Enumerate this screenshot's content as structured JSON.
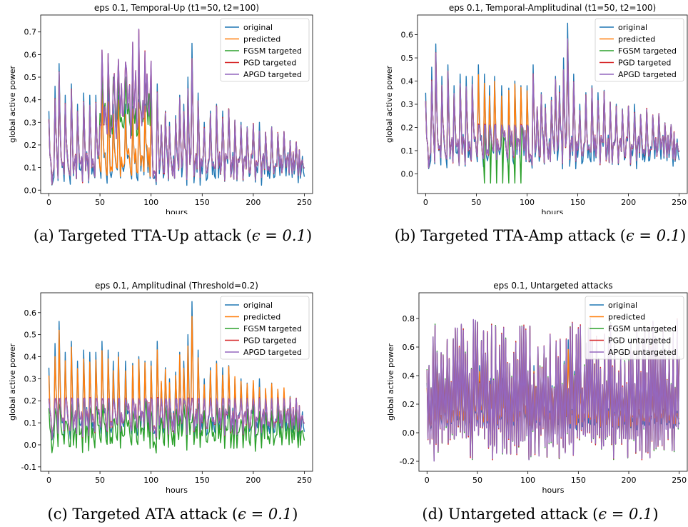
{
  "chart_data": [
    {
      "type": "line",
      "title": "eps 0.1, Temporal-Up (t1=50, t2=100)",
      "xlabel": "hours",
      "ylabel": "global active power",
      "xlim": [
        -8,
        258
      ],
      "ylim": [
        -0.015,
        0.775
      ],
      "xticks": [
        0,
        50,
        100,
        150,
        200,
        250
      ],
      "yticks": [
        0.0,
        0.1,
        0.2,
        0.3,
        0.4,
        0.5,
        0.6,
        0.7
      ],
      "grid": false,
      "legend_position": "top-right",
      "series": [
        {
          "name": "original",
          "color": "#1f77b4"
        },
        {
          "name": "predicted",
          "color": "#ff7f0e"
        },
        {
          "name": "FGSM targeted",
          "color": "#2ca02c"
        },
        {
          "name": "PGD targeted",
          "color": "#d62728"
        },
        {
          "name": "APGD targeted",
          "color": "#9467bd"
        }
      ]
    },
    {
      "type": "line",
      "title": "eps 0.1, Temporal-Amplitudinal (t1=50, t2=100)",
      "xlabel": "hours",
      "ylabel": "global active power",
      "xlim": [
        -8,
        258
      ],
      "ylim": [
        -0.085,
        0.685
      ],
      "xticks": [
        0,
        50,
        100,
        150,
        200,
        250
      ],
      "yticks": [
        0.0,
        0.1,
        0.2,
        0.3,
        0.4,
        0.5,
        0.6
      ],
      "grid": false,
      "legend_position": "top-right",
      "series": [
        {
          "name": "original",
          "color": "#1f77b4"
        },
        {
          "name": "predicted",
          "color": "#ff7f0e"
        },
        {
          "name": "FGSM targeted",
          "color": "#2ca02c"
        },
        {
          "name": "PGD targeted",
          "color": "#d62728"
        },
        {
          "name": "APGD targeted",
          "color": "#9467bd"
        }
      ]
    },
    {
      "type": "line",
      "title": "eps 0.1, Amplitudinal (Threshold=0.2)",
      "xlabel": "hours",
      "ylabel": "global active power",
      "xlim": [
        -8,
        258
      ],
      "ylim": [
        -0.12,
        0.69
      ],
      "xticks": [
        0,
        50,
        100,
        150,
        200,
        250
      ],
      "yticks": [
        -0.1,
        0.0,
        0.1,
        0.2,
        0.3,
        0.4,
        0.5,
        0.6
      ],
      "grid": false,
      "legend_position": "top-right",
      "series": [
        {
          "name": "original",
          "color": "#1f77b4"
        },
        {
          "name": "predicted",
          "color": "#ff7f0e"
        },
        {
          "name": "FGSM targeted",
          "color": "#2ca02c"
        },
        {
          "name": "PGD targeted",
          "color": "#d62728"
        },
        {
          "name": "APGD targeted",
          "color": "#9467bd"
        }
      ]
    },
    {
      "type": "line",
      "title": "eps 0.1, Untargeted attacks",
      "xlabel": "hours",
      "ylabel": "global active power",
      "xlim": [
        -8,
        258
      ],
      "ylim": [
        -0.27,
        0.98
      ],
      "xticks": [
        0,
        50,
        100,
        150,
        200,
        250
      ],
      "yticks": [
        -0.2,
        0.0,
        0.2,
        0.4,
        0.6,
        0.8
      ],
      "grid": false,
      "legend_position": "top-right",
      "series": [
        {
          "name": "original",
          "color": "#1f77b4"
        },
        {
          "name": "predicted",
          "color": "#ff7f0e"
        },
        {
          "name": "FGSM untargeted",
          "color": "#2ca02c"
        },
        {
          "name": "PGD untargeted",
          "color": "#d62728"
        },
        {
          "name": "APGD untargeted",
          "color": "#9467bd"
        }
      ]
    }
  ],
  "captions": [
    {
      "label": "(a) Targeted TTA-Up attack (",
      "eq": "ϵ = 0.1",
      "close": ")"
    },
    {
      "label": "(b) Targeted TTA-Amp attack (",
      "eq": "ϵ = 0.1",
      "close": ")"
    },
    {
      "label": "(c) Targeted ATA attack (",
      "eq": "ϵ = 0.1",
      "close": ")"
    },
    {
      "label": "(d) Untargeted attack (",
      "eq": "ϵ = 0.1",
      "close": ")"
    }
  ]
}
